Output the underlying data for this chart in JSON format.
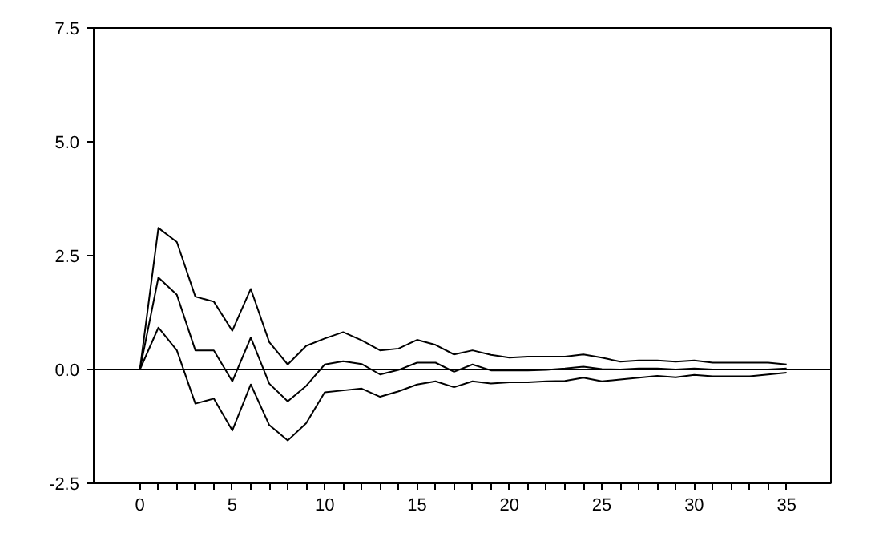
{
  "chart_data": {
    "type": "line",
    "x": [
      0,
      1,
      2,
      3,
      4,
      5,
      6,
      7,
      8,
      9,
      10,
      11,
      12,
      13,
      14,
      15,
      16,
      17,
      18,
      19,
      20,
      21,
      22,
      23,
      24,
      25,
      26,
      27,
      28,
      29,
      30,
      31,
      32,
      33,
      34,
      35
    ],
    "series": [
      {
        "color": "#000000",
        "values": [
          0,
          3.11,
          2.8,
          1.6,
          1.49,
          0.85,
          1.77,
          0.6,
          0.11,
          0.52,
          0.68,
          0.82,
          0.64,
          0.42,
          0.46,
          0.65,
          0.54,
          0.33,
          0.42,
          0.32,
          0.26,
          0.28,
          0.28,
          0.28,
          0.33,
          0.26,
          0.17,
          0.2,
          0.2,
          0.17,
          0.2,
          0.15,
          0.15,
          0.15,
          0.15,
          0.11
        ]
      },
      {
        "color": "#000000",
        "values": [
          0,
          2.02,
          1.64,
          0.42,
          0.42,
          -0.26,
          0.7,
          -0.31,
          -0.7,
          -0.36,
          0.11,
          0.18,
          0.12,
          -0.11,
          -0.01,
          0.15,
          0.15,
          -0.05,
          0.11,
          -0.02,
          -0.02,
          -0.02,
          -0.01,
          0.02,
          0.06,
          0.01,
          0,
          0.02,
          0.02,
          0,
          0.02,
          0,
          0,
          0,
          0,
          0.02
        ]
      },
      {
        "color": "#000000",
        "values": [
          0,
          0.92,
          0.42,
          -0.75,
          -0.64,
          -1.34,
          -0.33,
          -1.22,
          -1.56,
          -1.18,
          -0.5,
          -0.46,
          -0.42,
          -0.6,
          -0.48,
          -0.33,
          -0.26,
          -0.39,
          -0.26,
          -0.31,
          -0.28,
          -0.28,
          -0.26,
          -0.25,
          -0.18,
          -0.26,
          -0.22,
          -0.18,
          -0.14,
          -0.17,
          -0.12,
          -0.15,
          -0.15,
          -0.15,
          -0.11,
          -0.07
        ]
      }
    ],
    "xlim": [
      -2.5,
      37.4
    ],
    "xticks": [
      0,
      {
        "value": 1,
        "label": null
      },
      {
        "value": 2,
        "label": null
      },
      {
        "value": 3,
        "label": null
      },
      {
        "value": 4,
        "label": null
      },
      5,
      {
        "value": 6,
        "label": null
      },
      {
        "value": 7,
        "label": null
      },
      {
        "value": 8,
        "label": null
      },
      {
        "value": 9,
        "label": null
      },
      10,
      {
        "value": 11,
        "label": null
      },
      {
        "value": 12,
        "label": null
      },
      {
        "value": 13,
        "label": null
      },
      {
        "value": 14,
        "label": null
      },
      15,
      {
        "value": 16,
        "label": null
      },
      {
        "value": 17,
        "label": null
      },
      {
        "value": 18,
        "label": null
      },
      {
        "value": 19,
        "label": null
      },
      20,
      {
        "value": 21,
        "label": null
      },
      {
        "value": 22,
        "label": null
      },
      {
        "value": 23,
        "label": null
      },
      {
        "value": 24,
        "label": null
      },
      25,
      {
        "value": 26,
        "label": null
      },
      {
        "value": 27,
        "label": null
      },
      {
        "value": 28,
        "label": null
      },
      {
        "value": 29,
        "label": null
      },
      30,
      {
        "value": 31,
        "label": null
      },
      {
        "value": 32,
        "label": null
      },
      {
        "value": 33,
        "label": null
      },
      {
        "value": 34,
        "label": null
      },
      35
    ],
    "ylim": [
      -2.5,
      7.5
    ],
    "yticks": [
      {
        "value": -2.5,
        "label": "-2.5"
      },
      {
        "value": 0,
        "label": "0.0"
      },
      {
        "value": 2.5,
        "label": "2.5"
      },
      {
        "value": 5,
        "label": "5.0"
      },
      {
        "value": 7.5,
        "label": "7.5"
      }
    ],
    "ref_lines": [
      {
        "axis": "y",
        "value": 0,
        "color": "#000000"
      }
    ],
    "grid": false,
    "marker": "none",
    "line_style": "solid"
  }
}
